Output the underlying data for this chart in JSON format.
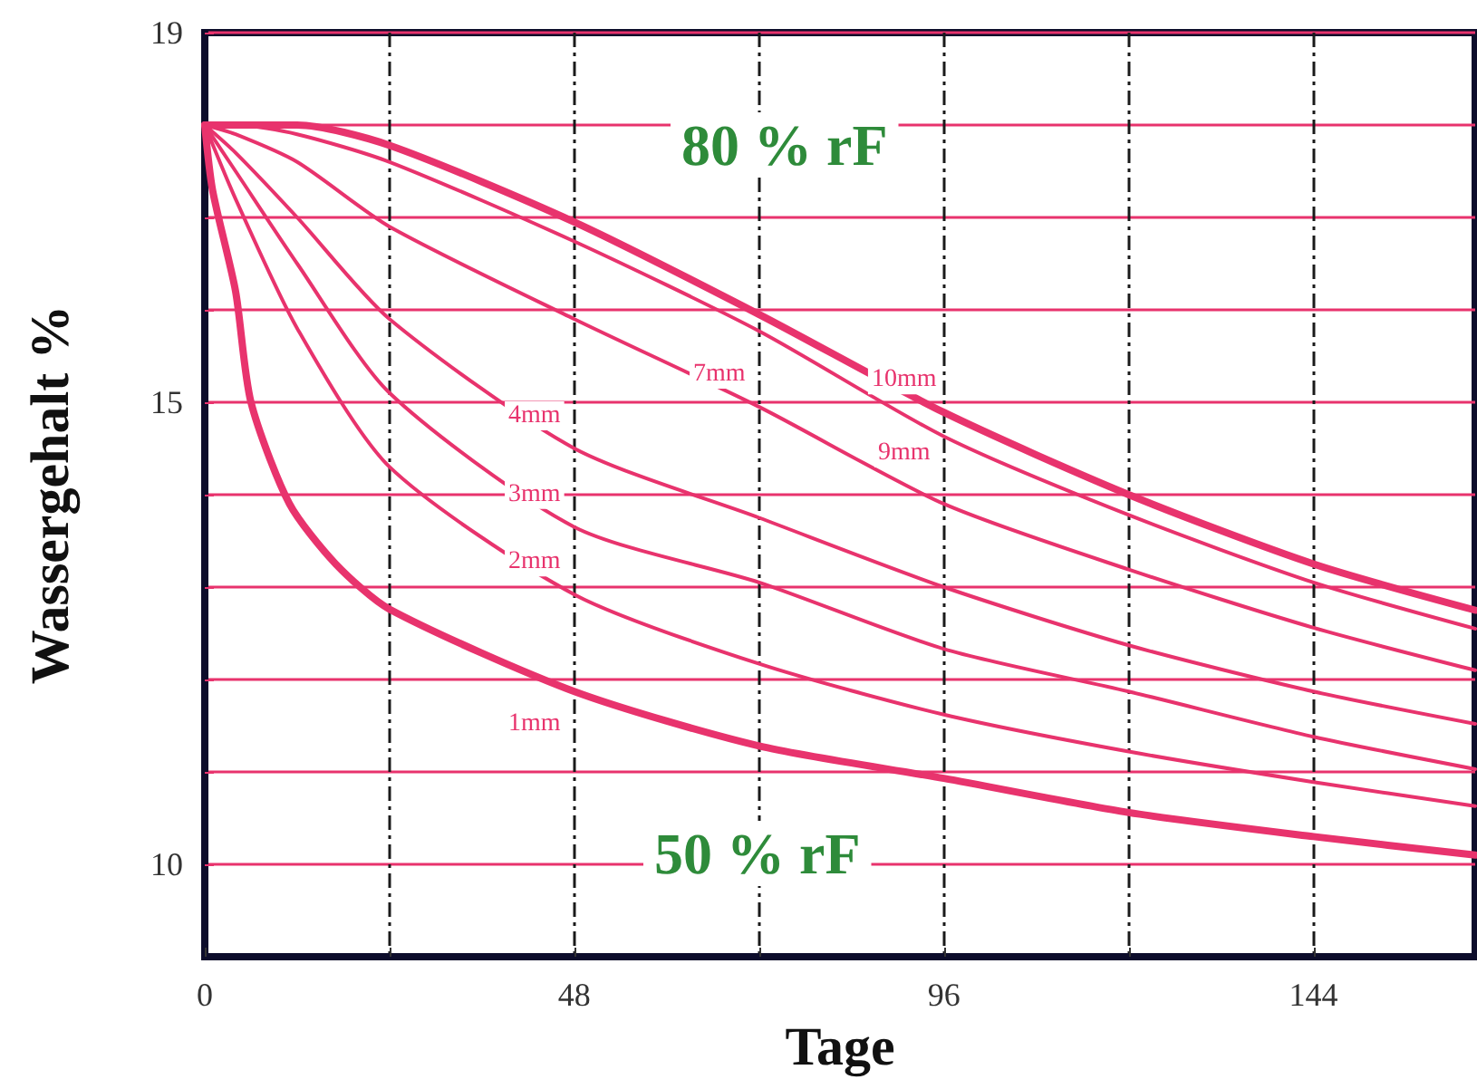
{
  "chart_data": {
    "type": "line",
    "xlabel": "Tage",
    "ylabel": "Wassergehalt %",
    "x": [
      0,
      4,
      12,
      24,
      48,
      72,
      96,
      120,
      144,
      165
    ],
    "series": [
      {
        "name": "1mm",
        "color": "#e8336d",
        "x": [
          0,
          1,
          4,
          6,
          11,
          17,
          24,
          48,
          72,
          96,
          120,
          144,
          165
        ],
        "values": [
          18,
          17.3,
          16.2,
          15.0,
          13.9,
          13.25,
          12.76,
          11.87,
          11.28,
          10.93,
          10.56,
          10.3,
          10.1
        ]
      },
      {
        "name": "2mm",
        "color": "#e8336d",
        "values": [
          18,
          17.2,
          15.8,
          14.3,
          12.92,
          12.17,
          11.62,
          11.22,
          10.89,
          10.63
        ]
      },
      {
        "name": "3mm",
        "color": "#e8336d",
        "values": [
          18,
          17.5,
          16.5,
          15.1,
          13.65,
          13.05,
          12.33,
          11.87,
          11.38,
          11.03
        ]
      },
      {
        "name": "4mm",
        "color": "#e8336d",
        "values": [
          18,
          17.7,
          17.0,
          15.9,
          14.5,
          13.75,
          13.0,
          12.37,
          11.87,
          11.52
        ]
      },
      {
        "name": "7mm",
        "color": "#e8336d",
        "values": [
          18,
          17.9,
          17.6,
          16.9,
          15.9,
          14.95,
          13.9,
          13.19,
          12.56,
          12.1
        ]
      },
      {
        "name": "9mm",
        "color": "#e8336d",
        "values": [
          18,
          18,
          17.9,
          17.6,
          16.74,
          15.77,
          14.63,
          13.78,
          13.05,
          12.55
        ]
      },
      {
        "name": "10mm",
        "color": "#e8336d",
        "values": [
          18,
          18,
          18,
          17.78,
          16.95,
          15.95,
          14.89,
          14.0,
          13.25,
          12.75
        ]
      }
    ],
    "xlim": [
      0,
      165
    ],
    "xticks": [
      0,
      {
        "value": 24,
        "label": null
      },
      48,
      {
        "value": 72,
        "label": null
      },
      96,
      {
        "value": 120,
        "label": null
      },
      144
    ],
    "ylim": [
      9,
      19
    ],
    "yticks": [
      10,
      {
        "value": 11,
        "label": null
      },
      {
        "value": 12,
        "label": null
      },
      {
        "value": 13,
        "label": null
      },
      {
        "value": 14,
        "label": null
      },
      15,
      {
        "value": 16,
        "label": null
      },
      {
        "value": 17,
        "label": null
      },
      {
        "value": 18,
        "label": null
      },
      19
    ],
    "annotations": [
      "80 % rF",
      "50 % rF"
    ],
    "grid": true,
    "legend": false,
    "marker": "none",
    "line_style": "solid"
  }
}
